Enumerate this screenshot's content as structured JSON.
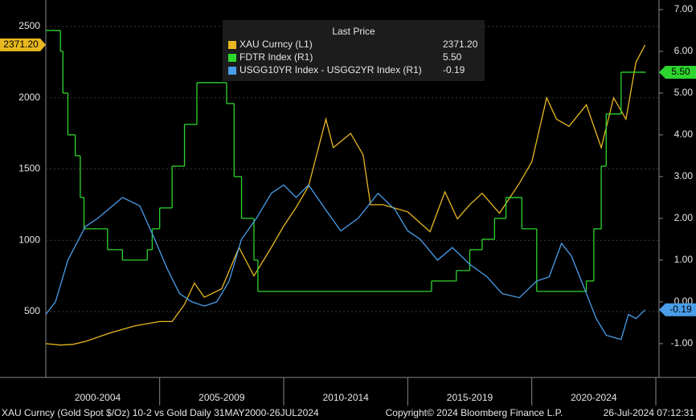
{
  "chart_data": {
    "type": "line",
    "legend_title": "Last Price",
    "footer_left": "XAU Curncy (Gold Spot  $/Oz) 10-2 vs Gold  Daily 31MAY2000-26JUL2024",
    "footer_center": "Copyright© 2024 Bloomberg Finance L.P.",
    "footer_right": "26-Jul-2024 07:12:31",
    "xlim": [
      2000.41,
      2025.13
    ],
    "xticks": [
      {
        "value": 2002.5,
        "label": "2000-2004"
      },
      {
        "value": 2007.5,
        "label": "2005-2009"
      },
      {
        "value": 2012.5,
        "label": "2010-2014"
      },
      {
        "value": 2017.5,
        "label": "2015-2019"
      },
      {
        "value": 2022.5,
        "label": "2020-2024"
      }
    ],
    "ylim": [
      38,
      2686
    ],
    "yticks": [
      500,
      1000,
      1500,
      2000,
      2500
    ],
    "y2lim": [
      -1.81,
      7.23
    ],
    "y2ticks": [
      {
        "value": -1,
        "label": "-1.00"
      },
      {
        "value": 0,
        "label": "0.00"
      },
      {
        "value": 1,
        "label": "1.00"
      },
      {
        "value": 2,
        "label": "2.00"
      },
      {
        "value": 3,
        "label": "3.00"
      },
      {
        "value": 4,
        "label": "4.00"
      },
      {
        "value": 5,
        "label": "5.00"
      },
      {
        "value": 6,
        "label": "6.00"
      },
      {
        "value": 7,
        "label": "7.00"
      }
    ],
    "series": [
      {
        "name": "XAU Curncy  (L1)",
        "color": "#e8b820",
        "last_label": "2371.20",
        "x": [
          2000.41,
          2001,
          2001.5,
          2002,
          2003,
          2004,
          2005,
          2005.5,
          2006,
          2006.4,
          2006.8,
          2007.5,
          2008.2,
          2008.8,
          2009.5,
          2010,
          2010.5,
          2011,
          2011.7,
          2012,
          2012.7,
          2013.2,
          2013.5,
          2014,
          2015,
          2015.9,
          2016.5,
          2017,
          2017.5,
          2018,
          2018.7,
          2019.5,
          2020,
          2020.6,
          2021,
          2021.5,
          2022.2,
          2022.8,
          2023.3,
          2023.8,
          2024.2,
          2024.57
        ],
        "values": [
          275,
          265,
          270,
          290,
          350,
          400,
          430,
          430,
          550,
          700,
          600,
          660,
          950,
          750,
          950,
          1100,
          1230,
          1380,
          1850,
          1650,
          1750,
          1600,
          1250,
          1250,
          1200,
          1060,
          1340,
          1150,
          1250,
          1330,
          1190,
          1400,
          1550,
          2000,
          1850,
          1800,
          1950,
          1650,
          2000,
          1850,
          2250,
          2371.2
        ]
      },
      {
        "name": "FDTR Index  (R1)",
        "color": "#2ed52e",
        "axis": "y2",
        "step": true,
        "last_label": "5.50",
        "x": [
          2000.41,
          2001,
          2001.1,
          2001.3,
          2001.6,
          2001.8,
          2001.95,
          2002.9,
          2003.5,
          2004.5,
          2004.7,
          2005,
          2005.5,
          2006,
          2006.5,
          2007.7,
          2008,
          2008.3,
          2008.8,
          2008.96,
          2015.96,
          2016.96,
          2017.5,
          2018,
          2018.5,
          2018.96,
          2019.6,
          2020.2,
          2022.2,
          2022.5,
          2022.8,
          2023,
          2023.6,
          2024.57
        ],
        "values": [
          6.5,
          6,
          5,
          4,
          3.5,
          2.5,
          1.75,
          1.25,
          1,
          1.25,
          1.75,
          2.25,
          3.25,
          4.25,
          5.25,
          4.75,
          3,
          2,
          1,
          0.25,
          0.5,
          0.75,
          1.25,
          1.5,
          2,
          2.5,
          1.75,
          0.25,
          0.5,
          1.75,
          3.25,
          4.5,
          5.5,
          5.5
        ]
      },
      {
        "name": "USGG10YR Index - USGG2YR Index  (R1)",
        "color": "#4a9de8",
        "axis": "y2",
        "last_label": "-0.19",
        "x": [
          2000.41,
          2000.8,
          2001.3,
          2002,
          2002.5,
          2003.5,
          2004.2,
          2004.8,
          2005.3,
          2005.8,
          2006.3,
          2006.8,
          2007.3,
          2007.8,
          2008.3,
          2008.9,
          2009.5,
          2010,
          2010.5,
          2011,
          2011.7,
          2012.3,
          2013,
          2013.8,
          2014.5,
          2015,
          2015.5,
          2016.2,
          2016.8,
          2017.5,
          2018.2,
          2018.8,
          2019.5,
          2020.2,
          2020.7,
          2021.2,
          2021.6,
          2022.2,
          2022.6,
          2023,
          2023.6,
          2023.9,
          2024.2,
          2024.57
        ],
        "values": [
          -0.3,
          0,
          1,
          1.8,
          2,
          2.5,
          2.3,
          1.5,
          0.8,
          0.2,
          0,
          -0.1,
          0,
          0.5,
          1.5,
          2,
          2.6,
          2.8,
          2.5,
          2.8,
          2.2,
          1.7,
          2,
          2.6,
          2.2,
          1.7,
          1.5,
          1,
          1.3,
          0.9,
          0.6,
          0.2,
          0.1,
          0.5,
          0.6,
          1.4,
          1.1,
          0.2,
          -0.4,
          -0.8,
          -0.9,
          -0.3,
          -0.4,
          -0.19
        ]
      }
    ]
  }
}
